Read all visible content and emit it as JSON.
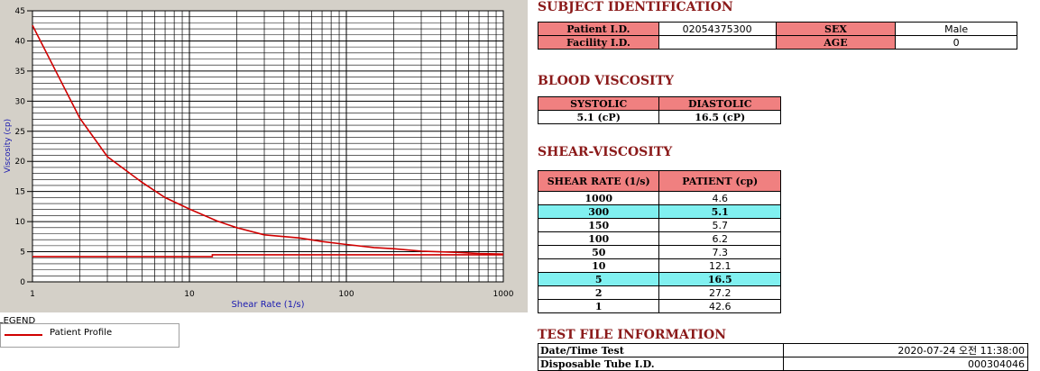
{
  "chart_data": {
    "type": "line",
    "xscale": "log",
    "xlabel": "Shear Rate (1/s)",
    "ylabel": "Viscosity (cp)",
    "xlim": [
      1,
      1000
    ],
    "ylim": [
      0,
      45
    ],
    "xticks": [
      "1",
      "10",
      "100",
      "1000"
    ],
    "yticks": [
      "0",
      "5",
      "10",
      "15",
      "20",
      "25",
      "30",
      "35",
      "40",
      "45"
    ],
    "grid": true,
    "series": [
      {
        "name": "Patient Profile",
        "color": "#d00000",
        "x": [
          1,
          1.5,
          2,
          3,
          5,
          7,
          10,
          15,
          20,
          30,
          50,
          70,
          100,
          150,
          200,
          300,
          500,
          700,
          1000
        ],
        "y": [
          42.6,
          33.6,
          27.2,
          20.8,
          16.5,
          14.0,
          12.1,
          10.1,
          9.0,
          7.8,
          7.3,
          6.7,
          6.2,
          5.7,
          5.5,
          5.1,
          4.9,
          4.7,
          4.6
        ]
      },
      {
        "name": "",
        "color": "#d00000",
        "x": [
          1,
          14,
          14,
          1000
        ],
        "y": [
          4.2,
          4.2,
          4.5,
          4.5
        ]
      }
    ]
  },
  "legend": {
    "title": "LEGEND",
    "label": "Patient Profile"
  },
  "subject": {
    "title": "SUBJECT IDENTIFICATION",
    "patient_id_label": "Patient I.D.",
    "patient_id": "02054375300",
    "sex_label": "SEX",
    "sex": "Male",
    "facility_label": "Facility I.D.",
    "facility": "",
    "age_label": "AGE",
    "age": "0"
  },
  "blood": {
    "title": "BLOOD VISCOSITY",
    "systolic_label": "SYSTOLIC",
    "diastolic_label": "DIASTOLIC",
    "systolic": "5.1 (cP)",
    "diastolic": "16.5 (cP)"
  },
  "shear": {
    "title": "SHEAR-VISCOSITY",
    "col_rate": "SHEAR RATE (1/s)",
    "col_patient": "PATIENT (cp)",
    "rows": [
      {
        "rate": "1000",
        "value": "4.6",
        "highlight": false
      },
      {
        "rate": "300",
        "value": "5.1",
        "highlight": true
      },
      {
        "rate": "150",
        "value": "5.7",
        "highlight": false
      },
      {
        "rate": "100",
        "value": "6.2",
        "highlight": false
      },
      {
        "rate": "50",
        "value": "7.3",
        "highlight": false
      },
      {
        "rate": "10",
        "value": "12.1",
        "highlight": false
      },
      {
        "rate": "5",
        "value": "16.5",
        "highlight": true
      },
      {
        "rate": "2",
        "value": "27.2",
        "highlight": false
      },
      {
        "rate": "1",
        "value": "42.6",
        "highlight": false
      }
    ]
  },
  "testfile": {
    "title": "TEST FILE INFORMATION",
    "datetime_label": "Date/Time Test",
    "datetime": "2020-07-24  오전 11:38:00",
    "tube_label": "Disposable Tube I.D.",
    "tube": "000304046"
  }
}
